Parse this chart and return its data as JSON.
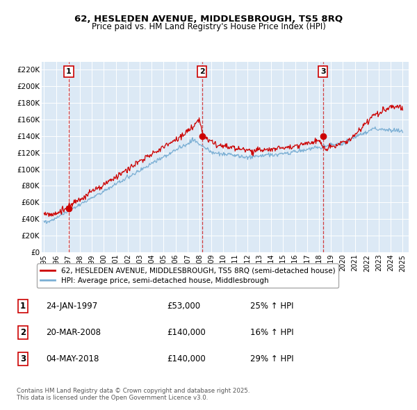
{
  "title": "62, HESLEDEN AVENUE, MIDDLESBROUGH, TS5 8RQ",
  "subtitle": "Price paid vs. HM Land Registry's House Price Index (HPI)",
  "bg_color": "#dce9f5",
  "plot_bg_color": "#dce9f5",
  "ylim": [
    0,
    230000
  ],
  "yticks": [
    0,
    20000,
    40000,
    60000,
    80000,
    100000,
    120000,
    140000,
    160000,
    180000,
    200000,
    220000
  ],
  "transactions": [
    {
      "date_num": 1997.07,
      "price": 53000,
      "label": "1"
    },
    {
      "date_num": 2008.22,
      "price": 140000,
      "label": "2"
    },
    {
      "date_num": 2018.34,
      "price": 140000,
      "label": "3"
    }
  ],
  "line_red_color": "#cc0000",
  "line_blue_color": "#7bafd4",
  "legend_red_label": "62, HESLEDEN AVENUE, MIDDLESBROUGH, TS5 8RQ (semi-detached house)",
  "legend_blue_label": "HPI: Average price, semi-detached house, Middlesbrough",
  "table_rows": [
    {
      "num": "1",
      "date": "24-JAN-1997",
      "price": "£53,000",
      "change": "25% ↑ HPI"
    },
    {
      "num": "2",
      "date": "20-MAR-2008",
      "price": "£140,000",
      "change": "16% ↑ HPI"
    },
    {
      "num": "3",
      "date": "04-MAY-2018",
      "price": "£140,000",
      "change": "29% ↑ HPI"
    }
  ],
  "footer": "Contains HM Land Registry data © Crown copyright and database right 2025.\nThis data is licensed under the Open Government Licence v3.0."
}
